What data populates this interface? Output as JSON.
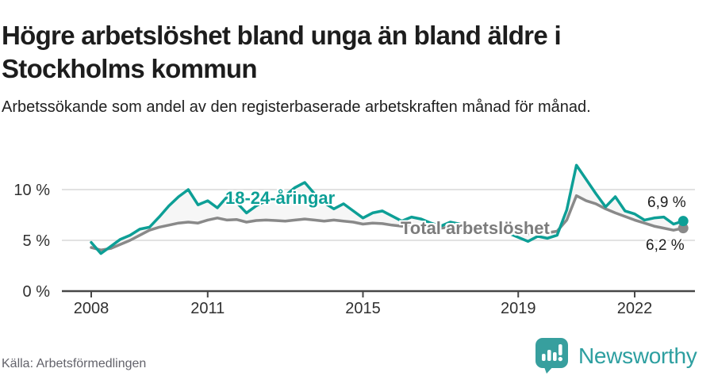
{
  "header": {
    "title": "Högre arbetslöshet bland unga än bland äldre i Stockholms kommun",
    "subtitle": "Arbetssökande som andel av den registerbaserade arbetskraften månad för månad."
  },
  "footer": {
    "source": "Källa: Arbetsförmedlingen",
    "brand": {
      "name": "Newsworthy",
      "icon": "newsworthy-speech-bubble-barchart-icon"
    }
  },
  "colors": {
    "young_line": "#0d9f96",
    "total_line": "#898989",
    "band_fill": "#f1f1f1",
    "gridline": "#d9d9d9",
    "axis": "#474747",
    "tick_text": "#303030",
    "brand_teal": "#379f9e"
  },
  "chart_data": {
    "type": "line",
    "title": "Högre arbetslöshet bland unga än bland äldre i Stockholms kommun",
    "subtitle": "Arbetssökande som andel av den registerbaserade arbetskraften månad för månad.",
    "xlabel": "",
    "ylabel": "",
    "y_tick_suffix": " %",
    "y_ticks": [
      0,
      5,
      10
    ],
    "x_ticks": [
      2008,
      2011,
      2015,
      2019,
      2022
    ],
    "ylim": [
      0,
      14
    ],
    "xlim": [
      2007.25,
      2023.55
    ],
    "grid": "horizontal",
    "legend_position": "inline-labels",
    "x": [
      2008,
      2008.25,
      2008.5,
      2008.75,
      2009,
      2009.25,
      2009.5,
      2009.75,
      2010,
      2010.25,
      2010.5,
      2010.75,
      2011,
      2011.25,
      2011.5,
      2011.75,
      2012,
      2012.25,
      2012.5,
      2012.75,
      2013,
      2013.25,
      2013.5,
      2013.75,
      2014,
      2014.25,
      2014.5,
      2014.75,
      2015,
      2015.25,
      2015.5,
      2015.75,
      2016,
      2016.25,
      2016.5,
      2016.75,
      2017,
      2017.25,
      2017.5,
      2017.75,
      2018,
      2018.25,
      2018.5,
      2018.75,
      2019,
      2019.25,
      2019.5,
      2019.75,
      2020,
      2020.25,
      2020.5,
      2020.75,
      2021,
      2021.25,
      2021.5,
      2021.75,
      2022,
      2022.25,
      2022.5,
      2022.75,
      2023,
      2023.25
    ],
    "series": [
      {
        "name": "18-24-åringar",
        "color": "#0d9f96",
        "end_label": "6,9 %",
        "end_value": 6.9,
        "values": [
          4.8,
          3.7,
          4.4,
          5.1,
          5.5,
          6.1,
          6.3,
          7.3,
          8.4,
          9.3,
          10.0,
          8.5,
          8.9,
          8.2,
          9.3,
          8.7,
          7.7,
          8.4,
          8.9,
          9.1,
          9.4,
          10.2,
          10.7,
          9.6,
          8.7,
          8.1,
          8.6,
          7.9,
          7.2,
          7.7,
          7.9,
          7.4,
          6.9,
          7.3,
          7.1,
          6.7,
          6.4,
          6.8,
          6.6,
          6.2,
          5.9,
          6.3,
          6.1,
          5.7,
          5.3,
          4.9,
          5.4,
          5.2,
          5.5,
          8.0,
          12.4,
          11.0,
          9.6,
          8.3,
          9.3,
          7.9,
          7.6,
          7.0,
          7.2,
          7.3,
          6.6,
          6.9
        ]
      },
      {
        "name": "Total arbetslöshet",
        "color": "#898989",
        "end_label": "6,2 %",
        "end_value": 6.2,
        "values": [
          4.3,
          4.05,
          4.2,
          4.6,
          5.0,
          5.5,
          6.0,
          6.3,
          6.5,
          6.7,
          6.8,
          6.7,
          7.0,
          7.2,
          7.0,
          7.05,
          6.8,
          6.95,
          7.0,
          6.95,
          6.9,
          7.0,
          7.1,
          7.0,
          6.9,
          7.0,
          6.9,
          6.8,
          6.6,
          6.7,
          6.65,
          6.5,
          6.4,
          6.5,
          6.45,
          6.3,
          6.2,
          6.3,
          6.25,
          6.1,
          5.95,
          6.05,
          5.95,
          5.8,
          5.7,
          5.6,
          5.7,
          5.75,
          5.9,
          7.0,
          9.4,
          8.9,
          8.6,
          8.1,
          7.7,
          7.35,
          7.0,
          6.7,
          6.4,
          6.2,
          6.0,
          6.2
        ]
      }
    ]
  }
}
